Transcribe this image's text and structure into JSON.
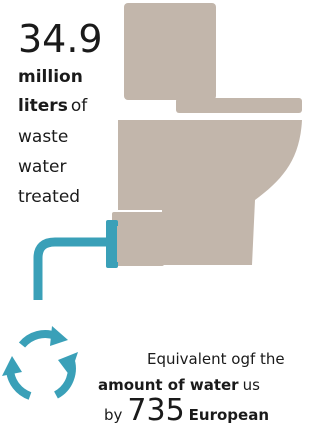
{
  "stat": {
    "number": "34.9",
    "unit_1": "million",
    "unit_2": "liters",
    "of": "of",
    "line_3": "waste",
    "line_4": "water",
    "line_5": "treated"
  },
  "comparison": {
    "line_1": "Equivalent ogf the",
    "bold_2": "amount of water",
    "rest_2": "us",
    "by": "by",
    "number": "735",
    "who": "European"
  }
}
